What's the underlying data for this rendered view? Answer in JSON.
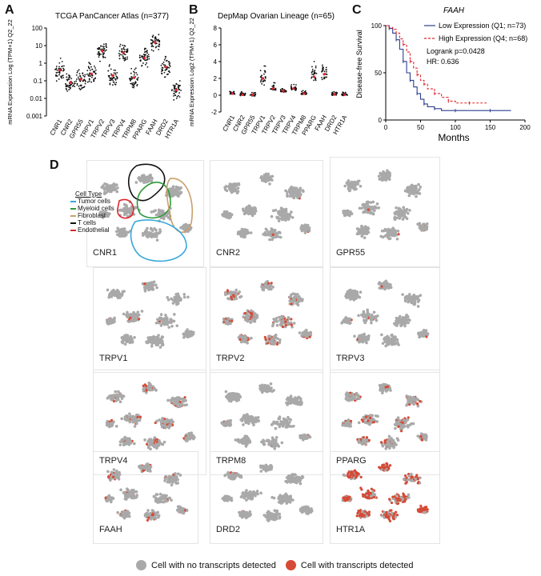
{
  "panels": {
    "a": "A",
    "b": "B",
    "c": "C",
    "d": "D"
  },
  "chart_data": [
    {
      "type": "scatter",
      "title": "TCGA PanCancer Atlas (n=377)",
      "ylabel": "mRNA Expression Log (TPM+1) Q2_22",
      "yscale": "log",
      "ylim": [
        0.001,
        100
      ],
      "yticks": [
        "100",
        "10",
        "1",
        "0.1",
        "0.01",
        "0.001"
      ],
      "categories": [
        "CNR1",
        "CNR2",
        "GPR55",
        "TRPV1",
        "TRPV2",
        "TRPV3",
        "TRPV4",
        "TRPM8",
        "PPARG",
        "FAAH",
        "DRD2",
        "HTR1A"
      ],
      "medians": [
        0.4,
        0.08,
        0.12,
        0.25,
        5,
        0.2,
        4,
        0.15,
        2,
        15,
        0.6,
        0.03
      ]
    },
    {
      "type": "scatter",
      "title": "DepMap Ovarian Lineage (n=65)",
      "ylabel": "mRNA Expression Log2 (TPM+1) Q2_22",
      "ylim": [
        -2,
        8
      ],
      "yticks": [
        "8",
        "6",
        "4",
        "2",
        "0",
        "-2"
      ],
      "categories": [
        "CNR1",
        "CNR2",
        "GPR55",
        "TRPV1",
        "TRPV2",
        "TRPV3",
        "TRPV4",
        "TRPM8",
        "PPARG",
        "FAAH",
        "DRD2",
        "HTR1A"
      ],
      "medians": [
        0.2,
        0.05,
        0.05,
        2,
        0.8,
        0.5,
        0.8,
        0.2,
        2.2,
        2.5,
        0.1,
        0.05
      ]
    },
    {
      "type": "line",
      "title": "FAAH",
      "ylabel": "Disease-free Survival",
      "xlabel": "Months",
      "xlim": [
        0,
        200
      ],
      "ylim": [
        0,
        100
      ],
      "xticks": [
        "0",
        "50",
        "100",
        "150",
        "200"
      ],
      "yticks": [
        "100",
        "50",
        "0"
      ],
      "series": [
        {
          "name": "Low Expression (Q1; n=73)",
          "color": "#2b3f8f",
          "x": [
            0,
            5,
            10,
            15,
            20,
            25,
            30,
            35,
            40,
            45,
            50,
            55,
            60,
            70,
            80,
            100,
            120,
            150,
            180
          ],
          "y": [
            100,
            97,
            92,
            85,
            75,
            62,
            50,
            42,
            35,
            28,
            22,
            17,
            14,
            12,
            10,
            10,
            10,
            10,
            10
          ]
        },
        {
          "name": "High Expression (Q4; n=68)",
          "color": "#e0262e",
          "x": [
            0,
            5,
            10,
            15,
            20,
            25,
            30,
            35,
            40,
            45,
            50,
            55,
            60,
            70,
            80,
            90,
            100,
            120,
            145
          ],
          "y": [
            100,
            98,
            96,
            92,
            86,
            80,
            72,
            62,
            55,
            48,
            42,
            38,
            33,
            28,
            24,
            20,
            18,
            18,
            18
          ]
        }
      ],
      "annotations": [
        "Logrank p=0.0428",
        "HR: 0.636"
      ]
    }
  ],
  "umap": {
    "legend_title": "Cell Type",
    "cell_types": [
      {
        "name": "Tumor cells",
        "color": "#3aa8dc"
      },
      {
        "name": "Myeloid cells",
        "color": "#2d9a3a"
      },
      {
        "name": "Fibroblast",
        "color": "#c8a06a"
      },
      {
        "name": "T cells",
        "color": "#111111"
      },
      {
        "name": "Endothelial",
        "color": "#e0262e"
      }
    ],
    "genes": [
      {
        "name": "CNR1",
        "frac": 0.0
      },
      {
        "name": "CNR2",
        "frac": 0.02
      },
      {
        "name": "GPR55",
        "frac": 0.02
      },
      {
        "name": "TRPV1",
        "frac": 0.04
      },
      {
        "name": "TRPV2",
        "frac": 0.2
      },
      {
        "name": "TRPV3",
        "frac": 0.01
      },
      {
        "name": "TRPV4",
        "frac": 0.12
      },
      {
        "name": "TRPM8",
        "frac": 0.01
      },
      {
        "name": "PPARG",
        "frac": 0.2
      },
      {
        "name": "FAAH",
        "frac": 0.12
      },
      {
        "name": "DRD2",
        "frac": 0.01
      },
      {
        "name": "HTR1A",
        "frac": 0.75
      }
    ],
    "legend_neg": "Cell with no transcripts detected",
    "legend_pos": "Cell with transcripts detected",
    "colors": {
      "neg": "#a9a9a9",
      "pos": "#d64a35"
    }
  }
}
